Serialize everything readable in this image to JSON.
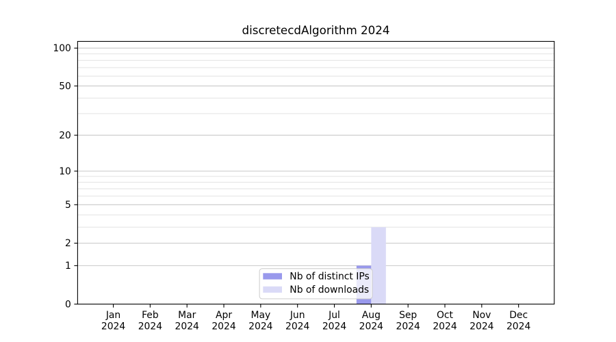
{
  "chart_data": {
    "type": "bar",
    "title": "discretecdAlgorithm 2024",
    "categories": [
      "Jan 2024",
      "Feb 2024",
      "Mar 2024",
      "Apr 2024",
      "May 2024",
      "Jun 2024",
      "Jul 2024",
      "Aug 2024",
      "Sep 2024",
      "Oct 2024",
      "Nov 2024",
      "Dec 2024"
    ],
    "series": [
      {
        "name": "Nb of distinct IPs",
        "color": "#9999ec",
        "values": [
          0,
          0,
          0,
          0,
          0,
          0,
          0,
          1,
          0,
          0,
          0,
          0
        ]
      },
      {
        "name": "Nb of downloads",
        "color": "#dadaf7",
        "values": [
          0,
          0,
          0,
          0,
          0,
          0,
          0,
          3,
          0,
          0,
          0,
          0
        ]
      }
    ],
    "xlabel": "",
    "ylabel": "",
    "y_axis": {
      "scale": "log10(1+value)",
      "tick_values": [
        0,
        1,
        2,
        5,
        10,
        20,
        50,
        100
      ],
      "tick_labels": [
        "0",
        "1",
        "2",
        "5",
        "10",
        "20",
        "50",
        "100"
      ],
      "minor_gridline_values": [
        3,
        4,
        6,
        7,
        8,
        9,
        30,
        40,
        60,
        70,
        80,
        90
      ],
      "range": [
        0,
        113
      ]
    },
    "grid": true,
    "legend": {
      "position": "lower center inside",
      "entries": [
        "Nb of distinct IPs",
        "Nb of downloads"
      ]
    }
  },
  "colors": {
    "background": "#ffffff",
    "spine": "#000000",
    "tick": "#000000",
    "major_grid": "#c8c8c8",
    "minor_grid": "#e2e2e2",
    "text": "#000000",
    "legend_border": "#cccccc",
    "legend_fill_alpha": 0.8
  }
}
